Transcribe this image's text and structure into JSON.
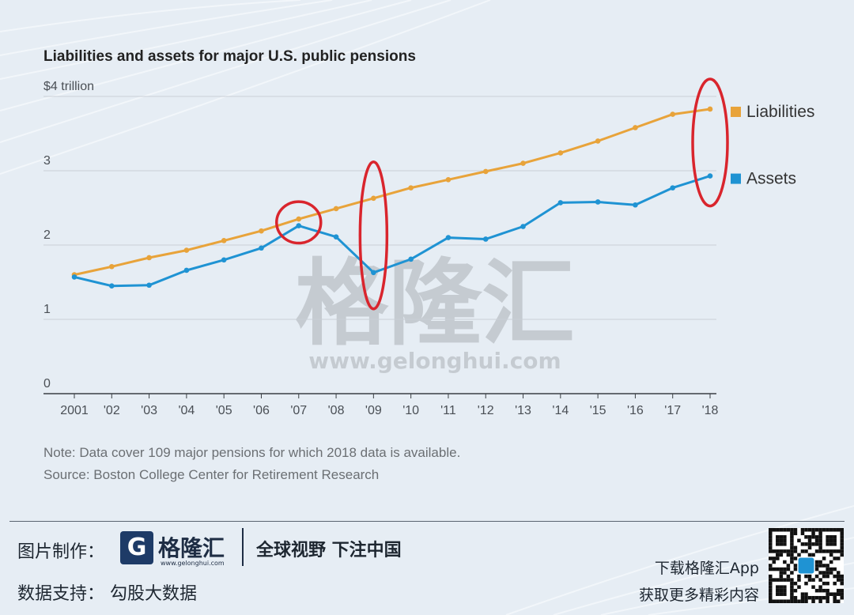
{
  "colors": {
    "liabilities": "#e8a33a",
    "assets": "#1f93d3",
    "highlight_ring": "#d9252d",
    "gridline": "#c9cfd6",
    "axis_text": "#4a4f55",
    "title_text": "#222222"
  },
  "watermark": {
    "chinese": "格隆汇",
    "url": "www.gelonghui.com"
  },
  "chart_data": {
    "type": "line",
    "title": "Liabilities and assets for major U.S. public pensions",
    "unit_label": "$4 trillion",
    "x_tick_labels": [
      "2001",
      "'02",
      "'03",
      "'04",
      "'05",
      "'06",
      "'07",
      "'08",
      "'09",
      "'10",
      "'11",
      "'12",
      "'13",
      "'14",
      "'15",
      "'16",
      "'17",
      "'18"
    ],
    "y_ticks": [
      0,
      1,
      2,
      3,
      4
    ],
    "y_tick_labels": [
      "0",
      "1",
      "2",
      "3",
      "$4 trillion"
    ],
    "ylim": [
      0,
      4
    ],
    "xlim": [
      2001,
      2018
    ],
    "grid": true,
    "legend_placement": "right, at line ends",
    "series": [
      {
        "name": "Liabilities",
        "color": "#e8a33a",
        "x": [
          2001,
          2002,
          2003,
          2004,
          2005,
          2006,
          2007,
          2008,
          2009,
          2010,
          2011,
          2012,
          2013,
          2014,
          2015,
          2016,
          2017,
          2018
        ],
        "values": [
          1.6,
          1.71,
          1.83,
          1.93,
          2.06,
          2.19,
          2.35,
          2.49,
          2.63,
          2.77,
          2.88,
          2.99,
          3.1,
          3.24,
          3.4,
          3.58,
          3.76,
          3.83
        ]
      },
      {
        "name": "Assets",
        "color": "#1f93d3",
        "x": [
          2001,
          2002,
          2003,
          2004,
          2005,
          2006,
          2007,
          2008,
          2009,
          2010,
          2011,
          2012,
          2013,
          2014,
          2015,
          2016,
          2017,
          2018
        ],
        "values": [
          1.57,
          1.45,
          1.46,
          1.66,
          1.8,
          1.96,
          2.26,
          2.11,
          1.63,
          1.81,
          2.1,
          2.08,
          2.25,
          2.57,
          2.58,
          2.54,
          2.77,
          2.93
        ]
      }
    ],
    "highlighted_years": [
      2007,
      2009,
      2018
    ]
  },
  "notes": {
    "note": "Note: Data cover 109 major pensions for which 2018 data is available.",
    "source": "Source: Boston College Center for Retirement Research"
  },
  "footer": {
    "credit_label": "图片制作：",
    "brand_icon": "G",
    "brand_name": "格隆汇",
    "brand_url": "www.gelonghui.com",
    "slogan": "全球视野 下注中国",
    "data_support": "数据支持： 勾股大数据",
    "app_download": "下载格隆汇App",
    "app_tagline": "获取更多精彩内容",
    "qr_icon": "qr-code-icon"
  }
}
